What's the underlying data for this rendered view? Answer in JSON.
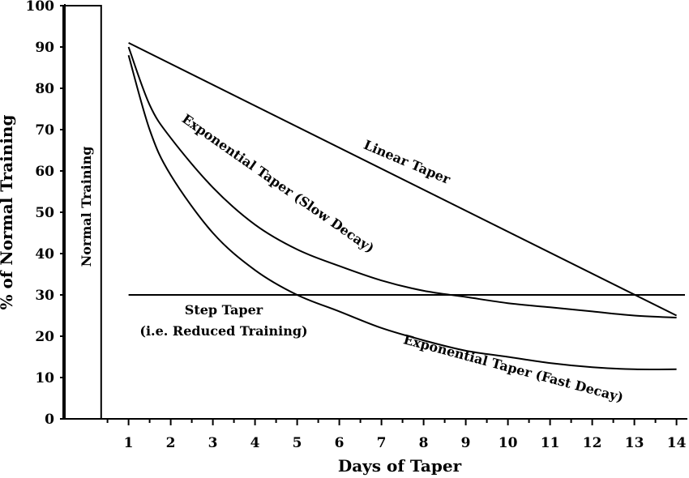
{
  "chart_data": {
    "type": "line",
    "title": "",
    "xlabel": "Days of Taper",
    "ylabel": "% of Normal Training",
    "xlim": [
      -1,
      14.5
    ],
    "ylim": [
      0,
      100
    ],
    "x_ticks": [
      1,
      2,
      3,
      4,
      5,
      6,
      7,
      8,
      9,
      10,
      11,
      12,
      13,
      14
    ],
    "y_ticks": [
      0,
      10,
      20,
      30,
      40,
      50,
      60,
      70,
      80,
      90,
      100
    ],
    "grid": false,
    "legend": "none",
    "bar": {
      "label": "Normal Training",
      "value": 100,
      "x_range": [
        -0.55,
        0.35
      ]
    },
    "series": [
      {
        "name": "Linear Taper",
        "x": [
          1,
          14
        ],
        "y": [
          91,
          25
        ]
      },
      {
        "name": "Exponential Taper (Slow Decay)",
        "x": [
          1,
          1.5,
          2,
          3,
          4,
          5,
          6,
          7,
          8,
          9,
          10,
          11,
          12,
          13,
          14
        ],
        "y": [
          90,
          76,
          68,
          56,
          47,
          41,
          37,
          33.5,
          31,
          29.5,
          28,
          27,
          26,
          25,
          24.5
        ]
      },
      {
        "name": "Exponential Taper (Fast Decay)",
        "x": [
          1,
          1.5,
          2,
          3,
          4,
          5,
          6,
          7,
          8,
          9,
          10,
          11,
          12,
          13,
          14
        ],
        "y": [
          88,
          70,
          59,
          45,
          36,
          30,
          26,
          22,
          19,
          16.5,
          15,
          13.5,
          12.5,
          12,
          12
        ]
      },
      {
        "name": "Step Taper (i.e. Reduced Training)",
        "x": [
          1,
          14.2
        ],
        "y": [
          30,
          30
        ]
      }
    ],
    "annotations": {
      "linear": "Linear Taper",
      "exp_slow": "Exponential Taper (Slow Decay)",
      "exp_fast": "Exponential Taper (Fast Decay)",
      "step_line1": "Step Taper",
      "step_line2": "(i.e. Reduced Training)"
    }
  }
}
